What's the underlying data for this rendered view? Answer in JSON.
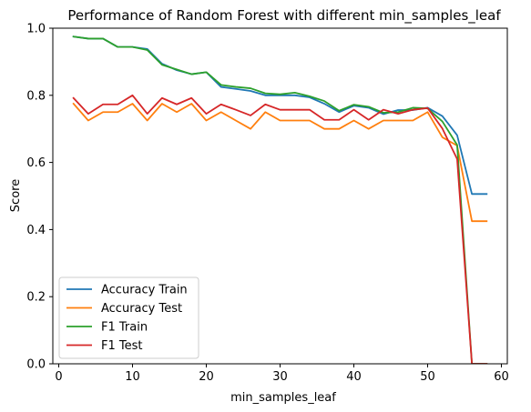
{
  "chart_data": {
    "type": "line",
    "title": "Performance of Random Forest with different min_samples_leaf",
    "xlabel": "min_samples_leaf",
    "ylabel": "Score",
    "xlim": [
      -0.8,
      60.8
    ],
    "ylim": [
      0.0,
      1.0
    ],
    "xticks": [
      0,
      10,
      20,
      30,
      40,
      50,
      60
    ],
    "yticks": [
      0.0,
      0.2,
      0.4,
      0.6,
      0.8,
      1.0
    ],
    "xtick_labels": [
      "0",
      "10",
      "20",
      "30",
      "40",
      "50",
      "60"
    ],
    "ytick_labels": [
      "0.0",
      "0.2",
      "0.4",
      "0.6",
      "0.8",
      "1.0"
    ],
    "legend_position": "lower-left",
    "grid": false,
    "x": [
      2,
      4,
      6,
      8,
      10,
      12,
      14,
      16,
      18,
      20,
      22,
      24,
      26,
      28,
      30,
      32,
      34,
      36,
      38,
      40,
      42,
      44,
      46,
      48,
      50,
      52,
      54,
      56,
      58
    ],
    "series": [
      {
        "name": "Accuracy Train",
        "color": "#1f77b4",
        "values": [
          0.975,
          0.969,
          0.969,
          0.944,
          0.944,
          0.938,
          0.894,
          0.875,
          0.863,
          0.869,
          0.825,
          0.819,
          0.813,
          0.8,
          0.8,
          0.8,
          0.794,
          0.775,
          0.75,
          0.769,
          0.763,
          0.744,
          0.756,
          0.756,
          0.763,
          0.738,
          0.681,
          0.506,
          0.506
        ]
      },
      {
        "name": "Accuracy Test",
        "color": "#ff7f0e",
        "values": [
          0.775,
          0.725,
          0.75,
          0.75,
          0.775,
          0.725,
          0.775,
          0.75,
          0.775,
          0.725,
          0.75,
          0.725,
          0.7,
          0.75,
          0.725,
          0.725,
          0.725,
          0.7,
          0.7,
          0.725,
          0.7,
          0.725,
          0.725,
          0.725,
          0.75,
          0.675,
          0.65,
          0.425,
          0.425
        ]
      },
      {
        "name": "F1 Train",
        "color": "#2ca02c",
        "values": [
          0.975,
          0.969,
          0.969,
          0.944,
          0.944,
          0.935,
          0.891,
          0.877,
          0.863,
          0.869,
          0.831,
          0.825,
          0.821,
          0.806,
          0.803,
          0.808,
          0.797,
          0.783,
          0.754,
          0.772,
          0.766,
          0.748,
          0.75,
          0.763,
          0.761,
          0.722,
          0.652,
          0.0,
          0.0
        ]
      },
      {
        "name": "F1 Test",
        "color": "#d62728",
        "values": [
          0.792,
          0.745,
          0.773,
          0.773,
          0.8,
          0.745,
          0.792,
          0.773,
          0.792,
          0.745,
          0.773,
          0.757,
          0.74,
          0.773,
          0.757,
          0.757,
          0.757,
          0.727,
          0.727,
          0.757,
          0.727,
          0.757,
          0.745,
          0.757,
          0.762,
          0.701,
          0.61,
          0.0,
          0.0
        ]
      }
    ]
  }
}
